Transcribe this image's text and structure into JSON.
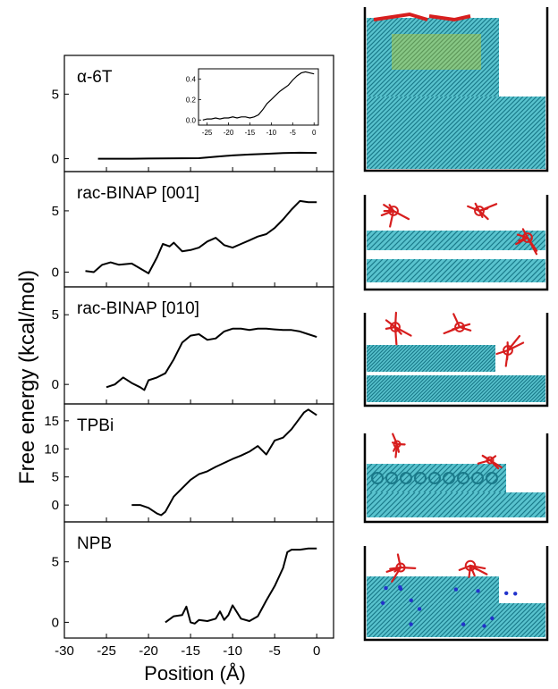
{
  "chart_data": {
    "type": "line",
    "ylabel": "Free energy (kcal/mol)",
    "xlabel": "Position (Å)",
    "xlim": [
      -30,
      2
    ],
    "x_ticks": [
      "-30",
      "-25",
      "-20",
      "-15",
      "-10",
      "-5",
      "0"
    ],
    "panels": [
      {
        "label": "α-6T",
        "ylim": [
          -1,
          8
        ],
        "y_ticks": [
          0,
          5
        ],
        "series": [
          {
            "x": [
              -26,
              -24,
              -22,
              -20,
              -18,
              -16,
              -14,
              -12,
              -10,
              -8,
              -6,
              -4,
              -2,
              0
            ],
            "y": [
              0.0,
              0.0,
              0.0,
              0.01,
              0.02,
              0.03,
              0.04,
              0.15,
              0.25,
              0.32,
              0.38,
              0.44,
              0.46,
              0.45
            ]
          }
        ],
        "inset": {
          "xlim": [
            -27,
            1
          ],
          "ylim": [
            -0.05,
            0.5
          ],
          "x_ticks": [
            -25,
            -20,
            -15,
            -10,
            -5,
            0
          ],
          "y_ticks": [
            "0.0",
            "0.2",
            "0.4"
          ],
          "x": [
            -26,
            -25,
            -24,
            -23,
            -22,
            -21,
            -20,
            -19,
            -18,
            -17,
            -16,
            -15,
            -14,
            -13,
            -12,
            -11,
            -10,
            -9,
            -8,
            -7,
            -6,
            -5,
            -4,
            -3,
            -2,
            -1,
            0
          ],
          "y": [
            0.0,
            0.01,
            0.01,
            0.02,
            0.01,
            0.02,
            0.02,
            0.03,
            0.02,
            0.03,
            0.03,
            0.02,
            0.03,
            0.05,
            0.1,
            0.16,
            0.2,
            0.24,
            0.28,
            0.31,
            0.34,
            0.39,
            0.43,
            0.46,
            0.47,
            0.46,
            0.45
          ]
        }
      },
      {
        "label": "rac-BINAP [001]",
        "ylim": [
          -1.2,
          8.2
        ],
        "y_ticks": [
          0,
          5
        ],
        "series": [
          {
            "x": [
              -27.5,
              -26.5,
              -25.5,
              -24.5,
              -23.5,
              -22,
              -21,
              -20,
              -19,
              -18.3,
              -17.5,
              -17,
              -16,
              -15,
              -14,
              -13,
              -12,
              -11,
              -10,
              -9,
              -8,
              -7,
              -6,
              -5,
              -4,
              -3,
              -2,
              -1,
              0
            ],
            "y": [
              0.1,
              0.0,
              0.6,
              0.8,
              0.6,
              0.7,
              0.3,
              -0.1,
              1.2,
              2.3,
              2.1,
              2.4,
              1.7,
              1.8,
              2.0,
              2.5,
              2.8,
              2.2,
              2.0,
              2.3,
              2.6,
              2.9,
              3.1,
              3.6,
              4.3,
              5.1,
              5.8,
              5.7,
              5.7
            ]
          }
        ]
      },
      {
        "label": "rac-BINAP [010]",
        "ylim": [
          -1.4,
          7.0
        ],
        "y_ticks": [
          0,
          5
        ],
        "series": [
          {
            "x": [
              -25,
              -24,
              -23,
              -22,
              -21,
              -20.5,
              -20,
              -19,
              -18,
              -17,
              -16,
              -15,
              -14,
              -13,
              -12,
              -11,
              -10,
              -9,
              -8,
              -7,
              -6,
              -5,
              -4,
              -3,
              -2,
              -1,
              0
            ],
            "y": [
              -0.2,
              0.0,
              0.5,
              0.1,
              -0.2,
              -0.4,
              0.3,
              0.5,
              0.8,
              1.8,
              3.0,
              3.5,
              3.6,
              3.2,
              3.3,
              3.8,
              4.0,
              4.0,
              3.9,
              4.0,
              4.0,
              3.95,
              3.9,
              3.9,
              3.8,
              3.6,
              3.4
            ]
          }
        ]
      },
      {
        "label": "TPBi",
        "ylim": [
          -3,
          18
        ],
        "y_ticks": [
          0,
          5,
          10,
          15
        ],
        "series": [
          {
            "x": [
              -22,
              -21,
              -20,
              -19,
              -18.5,
              -18,
              -17,
              -16,
              -15,
              -14,
              -13,
              -12,
              -11,
              -10,
              -9,
              -8,
              -7,
              -6,
              -5,
              -4,
              -3,
              -2,
              -1.5,
              -1,
              -0.5,
              0
            ],
            "y": [
              0.0,
              0.0,
              -0.5,
              -1.5,
              -1.8,
              -1.2,
              1.5,
              3.0,
              4.5,
              5.5,
              6.0,
              6.8,
              7.5,
              8.2,
              8.8,
              9.5,
              10.5,
              9.0,
              11.5,
              12.0,
              13.5,
              15.5,
              16.5,
              17.0,
              16.5,
              16.0
            ]
          }
        ]
      },
      {
        "label": "NPB",
        "ylim": [
          -1.3,
          8.3
        ],
        "y_ticks": [
          0,
          5
        ],
        "series": [
          {
            "x": [
              -18,
              -17,
              -16,
              -15.5,
              -15,
              -14.5,
              -14,
              -13,
              -12,
              -11.5,
              -11,
              -10.5,
              -10,
              -9,
              -8,
              -7,
              -6,
              -5,
              -4,
              -3.5,
              -3,
              -2,
              -1,
              0
            ],
            "y": [
              0.0,
              0.5,
              0.6,
              1.3,
              0.0,
              -0.1,
              0.2,
              0.1,
              0.3,
              0.9,
              0.2,
              0.6,
              1.4,
              0.3,
              0.1,
              0.5,
              1.8,
              3.0,
              4.5,
              5.8,
              6.0,
              6.0,
              6.1,
              6.1
            ]
          }
        ]
      }
    ]
  },
  "colors": {
    "line": "#000000",
    "axis": "#000000",
    "substrate": "#3cb9c6",
    "substrate_accent": "#1a7a8a",
    "adsorbate": "#d71e1e",
    "sulfur": "#e0d000",
    "nitrogen": "#2233cc",
    "box": "#000000"
  },
  "images": [
    {
      "icon": "alpha-6t-molecular-snapshot"
    },
    {
      "icon": "rac-binap-001-molecular-snapshot"
    },
    {
      "icon": "rac-binap-010-molecular-snapshot"
    },
    {
      "icon": "tpbi-molecular-snapshot"
    },
    {
      "icon": "npb-molecular-snapshot"
    }
  ]
}
